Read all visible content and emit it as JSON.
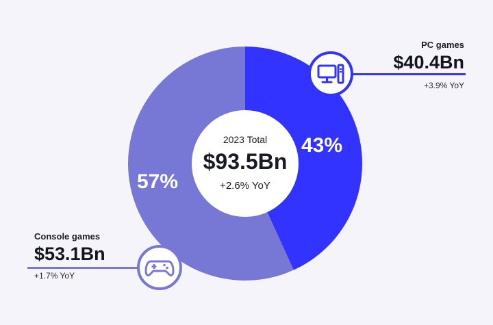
{
  "chart_data": {
    "type": "pie",
    "variant": "donut",
    "slices": [
      {
        "label": "PC games",
        "value": 40.4,
        "value_label": "$40.4Bn",
        "percent": 43,
        "percent_label": "43%",
        "yoy": "+3.9% YoY",
        "color": "#3333ff",
        "icon": "computer-icon"
      },
      {
        "label": "Console games",
        "value": 53.1,
        "value_label": "$53.1Bn",
        "percent": 57,
        "percent_label": "57%",
        "yoy": "+1.7% YoY",
        "color": "#7777d6",
        "icon": "gamepad-icon"
      }
    ],
    "center": {
      "label": "2023 Total",
      "value": "$93.5Bn",
      "yoy": "+2.6% YoY"
    },
    "background": "#f5f4fa"
  }
}
